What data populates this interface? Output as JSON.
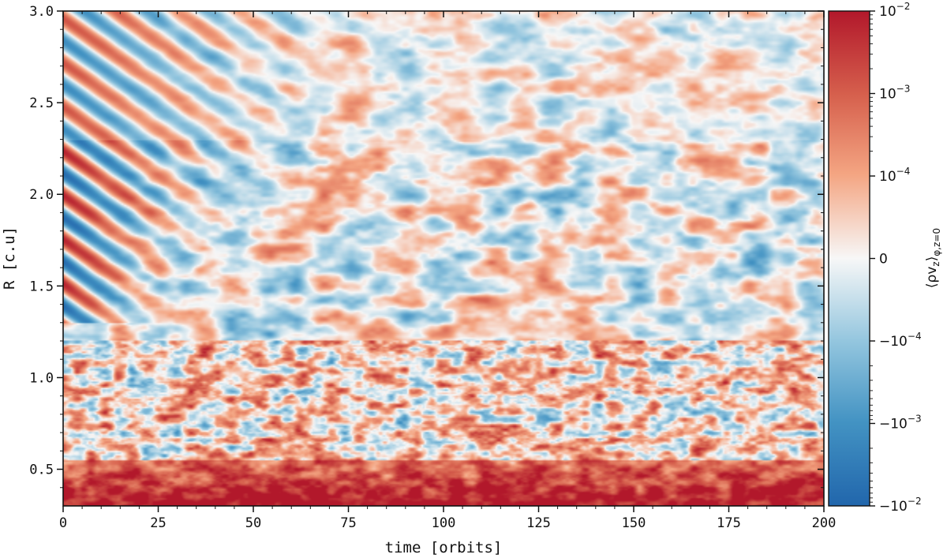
{
  "chart_data": {
    "type": "heatmap",
    "title": "",
    "xlabel": "time [orbits]",
    "ylabel": "R [c.u]",
    "xlim": [
      0,
      200
    ],
    "ylim": [
      0.3,
      3.0
    ],
    "x_ticks": [
      "0",
      "25",
      "50",
      "75",
      "100",
      "125",
      "150",
      "175",
      "200"
    ],
    "x_tick_values": [
      0,
      25,
      50,
      75,
      100,
      125,
      150,
      175,
      200
    ],
    "y_ticks": [
      "0.5",
      "1.0",
      "1.5",
      "2.0",
      "2.5",
      "3.0"
    ],
    "y_tick_values": [
      0.5,
      1.0,
      1.5,
      2.0,
      2.5,
      3.0
    ],
    "colorbar": {
      "label_main": "⟨ρv",
      "label_sub": "z",
      "label_close": "⟩",
      "label_subscript": "φ,z=0",
      "scale": "symlog",
      "colormap": "RdBu_r",
      "range": [
        -0.01,
        0.01
      ],
      "ticks": [
        {
          "base": "10",
          "exp": "−2",
          "value": 0.01
        },
        {
          "base": "10",
          "exp": "−3",
          "value": 0.001
        },
        {
          "base": "10",
          "exp": "−4",
          "value": 0.0001
        },
        {
          "base": "0",
          "exp": "",
          "value": 0
        },
        {
          "base": "−10",
          "exp": "−4",
          "value": -0.0001
        },
        {
          "base": "−10",
          "exp": "−3",
          "value": -0.001
        },
        {
          "base": "−10",
          "exp": "−2",
          "value": -0.01
        }
      ]
    },
    "colors": {
      "max": "#b2182b",
      "pos_mid": "#ef8a62",
      "pos_low": "#fddbc7",
      "zero": "#f7f7f7",
      "neg_low": "#d1e5f0",
      "neg_mid": "#67a9cf",
      "min": "#2166ac"
    },
    "features": "Inner disk (R < 0.5) strongly positive; oblique alternating stripes at early times (t < 60) for R > 1.3; turbulent mixed pattern elsewhere"
  }
}
